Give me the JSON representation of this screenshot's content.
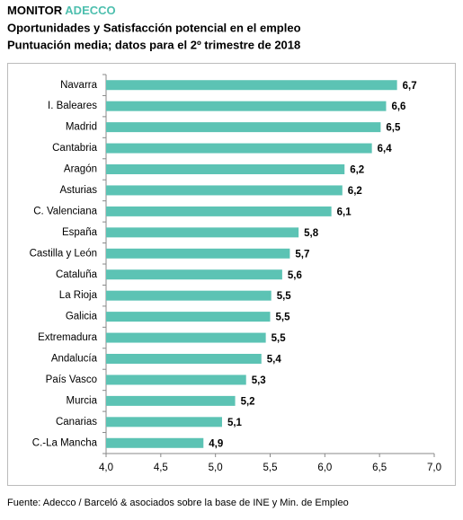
{
  "chart_data": {
    "type": "bar",
    "orientation": "horizontal",
    "title": "MONITOR",
    "title_highlight": "ADECCO",
    "highlight_color": "#4dbfae",
    "subtitle": "Oportunidades y Satisfacción potencial en el empleo",
    "subtitle2": "Puntuación media; datos para el 2º trimestre de 2018",
    "source": "Fuente: Adecco / Barceló & asociados sobre la base de INE y Min. de Empleo",
    "categories": [
      "Navarra",
      "I. Baleares",
      "Madrid",
      "Cantabria",
      "Aragón",
      "Asturias",
      "C. Valenciana",
      "España",
      "Castilla y León",
      "Cataluña",
      "La Rioja",
      "Galicia",
      "Extremadura",
      "Andalucía",
      "País Vasco",
      "Murcia",
      "Canarias",
      "C.-La Mancha"
    ],
    "values": [
      6.66,
      6.56,
      6.51,
      6.43,
      6.18,
      6.16,
      6.06,
      5.76,
      5.68,
      5.61,
      5.51,
      5.5,
      5.46,
      5.42,
      5.28,
      5.18,
      5.06,
      4.89
    ],
    "value_labels": [
      "6,7",
      "6,6",
      "6,5",
      "6,4",
      "6,2",
      "6,2",
      "6,1",
      "5,8",
      "5,7",
      "5,6",
      "5,5",
      "5,5",
      "5,5",
      "5,4",
      "5,3",
      "5,2",
      "5,1",
      "4,9"
    ],
    "color": "#5cc3b4",
    "xlim": [
      4,
      7
    ],
    "xticks": [
      {
        "value": 4,
        "label": "4,0"
      },
      {
        "value": 4.5,
        "label": "4,5"
      },
      {
        "value": 5,
        "label": "5,0"
      },
      {
        "value": 5.5,
        "label": "5,5"
      },
      {
        "value": 6,
        "label": "6,0"
      },
      {
        "value": 6.5,
        "label": "6,5"
      },
      {
        "value": 7,
        "label": "7,0"
      }
    ],
    "grid": false
  }
}
